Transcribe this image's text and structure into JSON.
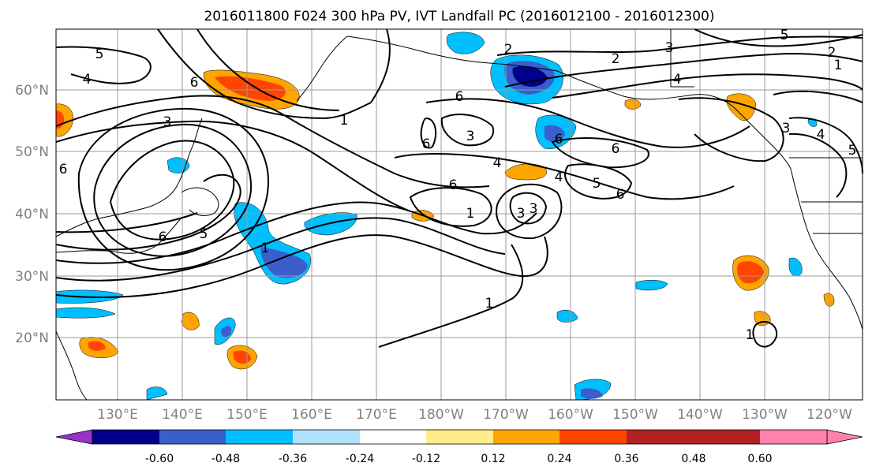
{
  "title": "2016011800 F024 300 hPa PV, IVT Landfall PC (2016012100 - 2016012300)",
  "lat_labels": [
    "60°N",
    "50°N",
    "40°N",
    "30°N",
    "20°N"
  ],
  "lon_labels": [
    "130°E",
    "140°E",
    "150°E",
    "160°E",
    "170°E",
    "180°W",
    "170°W",
    "160°W",
    "150°W",
    "140°W",
    "130°W",
    "120°W"
  ],
  "colorbar": {
    "colors": [
      "#9932cc",
      "#00008b",
      "#3a5fcd",
      "#00bfff",
      "#b0e2ff",
      "#ffffff",
      "#ffec8b",
      "#ffa500",
      "#ff4500",
      "#b22222",
      "#ff82ab"
    ],
    "tick_labels": [
      "-0.60",
      "-0.48",
      "-0.36",
      "-0.24",
      "-0.12",
      "0.12",
      "0.24",
      "0.36",
      "0.48",
      "0.60"
    ]
  },
  "contour_labels": [
    "5",
    "4",
    "6",
    "3",
    "6",
    "6",
    "1",
    "6",
    "3",
    "4",
    "6",
    "1",
    "6",
    "3",
    "3",
    "2",
    "2",
    "3",
    "4",
    "6",
    "6",
    "4",
    "5",
    "6",
    "5",
    "2",
    "1",
    "1",
    "3",
    "4",
    "5",
    "1",
    "5",
    "1"
  ]
}
